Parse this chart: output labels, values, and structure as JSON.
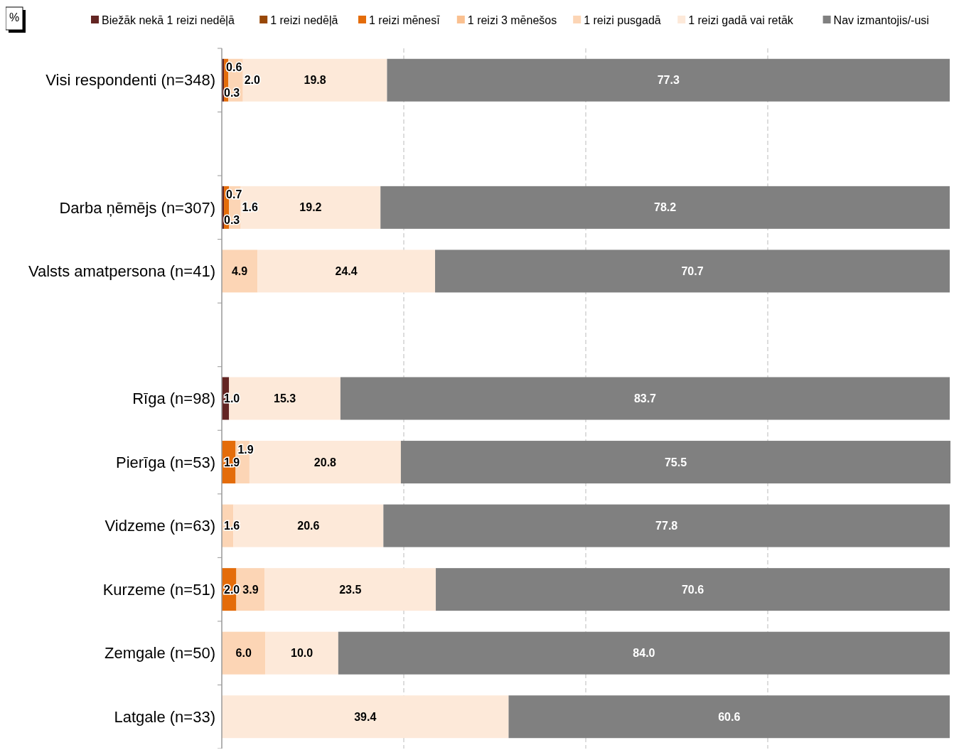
{
  "chart_data": {
    "type": "bar",
    "orientation": "horizontal",
    "stacked": true,
    "categories": [
      "Visi respondenti (n=348)",
      null,
      "Darba ņēmējs (n=307)",
      "Valsts amatpersona (n=41)",
      null,
      "Rīga (n=98)",
      "Pierīga (n=53)",
      "Vidzeme (n=63)",
      "Kurzeme (n=51)",
      "Zemgale (n=50)",
      "Latgale (n=33)"
    ],
    "series": [
      {
        "name": "Biežāk nekā 1 reizi nedēļā",
        "color": "#632523",
        "values": [
          0.3,
          null,
          0.3,
          null,
          null,
          1.0,
          null,
          null,
          null,
          null,
          null
        ],
        "value_labels": [
          "0.3",
          null,
          "0.3",
          null,
          null,
          "1.0",
          null,
          null,
          null,
          null,
          null
        ]
      },
      {
        "name": "1 reizi nedēļā",
        "color": "#984807",
        "values": [
          null,
          null,
          null,
          null,
          null,
          null,
          null,
          null,
          null,
          null,
          null
        ]
      },
      {
        "name": "1 reizi mēnesī",
        "color": "#e46c0a",
        "values": [
          0.6,
          null,
          0.7,
          null,
          null,
          null,
          1.9,
          null,
          2.0,
          null,
          null
        ],
        "value_labels": [
          "0.6",
          null,
          "0.7",
          null,
          null,
          null,
          "1.9",
          null,
          "2.0",
          null,
          null
        ]
      },
      {
        "name": "1 reizi 3 mēnešos",
        "color": "#fac090",
        "values": [
          null,
          null,
          null,
          null,
          null,
          null,
          null,
          null,
          null,
          null,
          null
        ]
      },
      {
        "name": "1 reizi pusgadā",
        "color": "#fcd5b5",
        "values": [
          2.0,
          null,
          1.6,
          4.9,
          null,
          null,
          1.9,
          1.6,
          3.9,
          6.0,
          null
        ],
        "value_labels": [
          "2.0",
          null,
          "1.6",
          "4.9",
          null,
          null,
          "1.9",
          "1.6",
          "3.9",
          "6.0",
          null
        ]
      },
      {
        "name": "1 reizi gadā vai retāk",
        "color": "#fde9d9",
        "values": [
          19.8,
          null,
          19.2,
          24.4,
          null,
          15.3,
          20.8,
          20.6,
          23.5,
          10.0,
          39.4
        ],
        "value_labels": [
          "19.8",
          null,
          "19.2",
          "24.4",
          null,
          "15.3",
          "20.8",
          "20.6",
          "23.5",
          "10.0",
          "39.4"
        ]
      },
      {
        "name": "Nav izmantojis/-usi",
        "color": "#808080",
        "values": [
          77.3,
          null,
          78.2,
          70.7,
          null,
          83.7,
          75.5,
          77.8,
          70.6,
          84.0,
          60.6
        ],
        "value_labels": [
          "77.3",
          null,
          "78.2",
          "70.7",
          null,
          "83.7",
          "75.5",
          "77.8",
          "70.6",
          "84.0",
          "60.6"
        ]
      }
    ],
    "xlim": [
      0,
      100
    ],
    "xticks": [
      {
        "value": 25,
        "label": null
      },
      {
        "value": 50,
        "label": null
      },
      {
        "value": 75,
        "label": null
      }
    ],
    "grid": "x",
    "tick_labels": "y",
    "legend": "top",
    "annotations": [
      "%"
    ]
  }
}
